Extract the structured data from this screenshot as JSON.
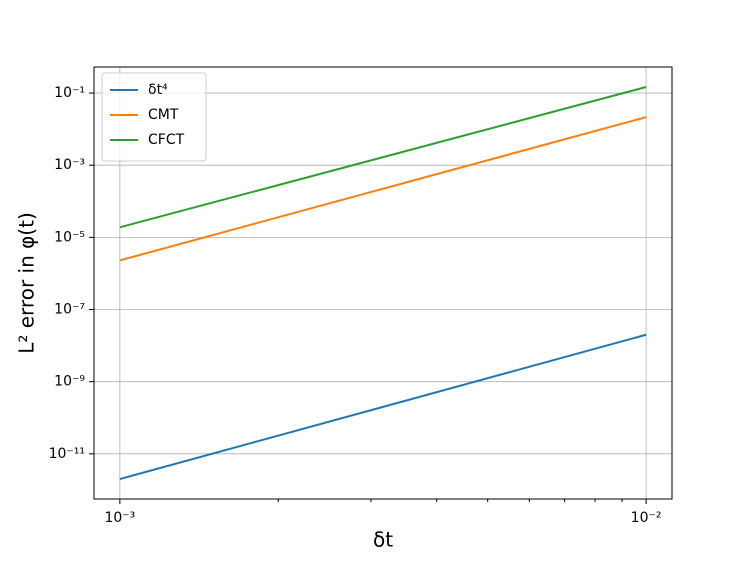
{
  "chart_data": {
    "type": "line",
    "x": [
      0.001,
      0.01
    ],
    "series": [
      {
        "name": "δt⁴",
        "color": "#1f77b4",
        "values": [
          2e-12,
          2e-08
        ]
      },
      {
        "name": "CMT",
        "color": "#ff7f0e",
        "values": [
          2.3e-06,
          0.0215
        ]
      },
      {
        "name": "CFCT",
        "color": "#2ca02c",
        "values": [
          1.9e-05,
          0.147
        ]
      }
    ],
    "x_label": "δt",
    "y_label": "L² error in φ(t)",
    "xscale": "log",
    "yscale": "log",
    "xlim": [
      0.000893,
      0.0112
    ],
    "ylim": [
      5.6e-13,
      0.527
    ],
    "xticks": [
      {
        "value": 0.001,
        "label": "10⁻³"
      },
      {
        "value": 0.01,
        "label": "10⁻²"
      }
    ],
    "xminorticks": [
      0.002,
      0.003,
      0.004,
      0.005,
      0.006,
      0.007,
      0.008,
      0.009
    ],
    "yticks": [
      {
        "value": 1e-11,
        "label": "10⁻¹¹"
      },
      {
        "value": 1e-09,
        "label": "10⁻⁹"
      },
      {
        "value": 1e-07,
        "label": "10⁻⁷"
      },
      {
        "value": 1e-05,
        "label": "10⁻⁵"
      },
      {
        "value": 0.001,
        "label": "10⁻³"
      },
      {
        "value": 0.1,
        "label": "10⁻¹"
      }
    ],
    "grid": true,
    "legend": "upper left"
  }
}
